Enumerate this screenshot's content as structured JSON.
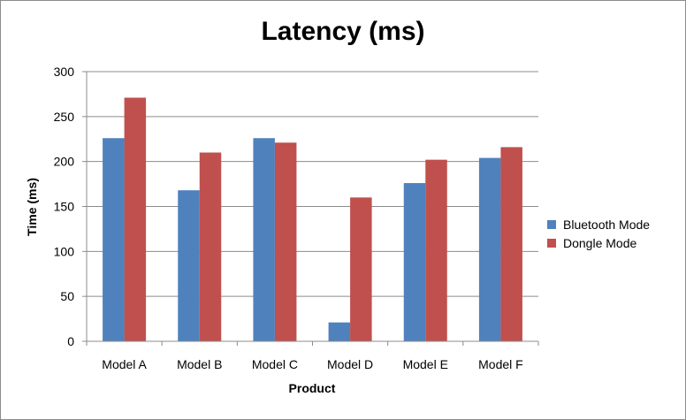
{
  "chart_data": {
    "type": "bar",
    "title": "Latency (ms)",
    "xlabel": "Product",
    "ylabel": "Time (ms)",
    "categories": [
      "Model A",
      "Model B",
      "Model C",
      "Model D",
      "Model E",
      "Model F"
    ],
    "series": [
      {
        "name": "Bluetooth Mode",
        "color": "#4f81bd",
        "values": [
          226,
          168,
          226,
          21,
          176,
          204
        ]
      },
      {
        "name": "Dongle Mode",
        "color": "#c0504d",
        "values": [
          271,
          210,
          221,
          160,
          202,
          216
        ]
      }
    ],
    "ylim": [
      0,
      300
    ],
    "yticks": [
      "0",
      "50",
      "100",
      "150",
      "200",
      "250",
      "300"
    ],
    "grid": true,
    "legend_position": "right"
  }
}
